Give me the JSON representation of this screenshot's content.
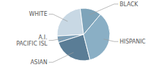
{
  "chart_data": {
    "type": "pie",
    "categories": [
      "WHITE",
      "A.I.\nPACIFIC ISL",
      "ASIAN",
      "HISPANIC",
      "BLACK"
    ],
    "values": [
      24,
      4,
      24,
      35,
      13
    ],
    "colors": [
      "#c8d8e4",
      "#7a9db5",
      "#5a7d96",
      "#8aafc5",
      "#7ea4ba"
    ]
  }
}
